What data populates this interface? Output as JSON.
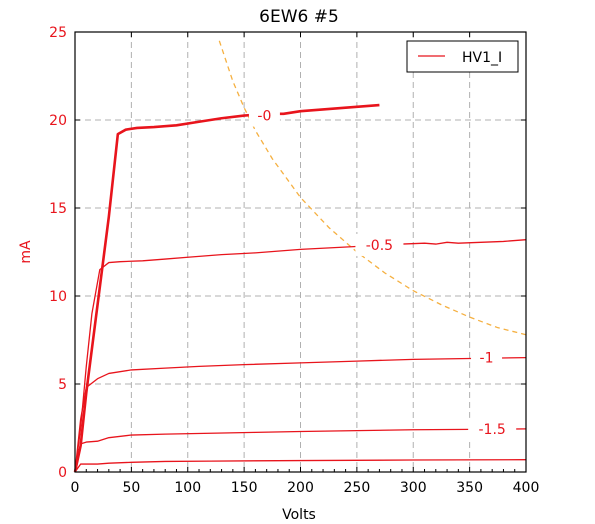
{
  "chart_data": {
    "type": "line",
    "title": "6EW6 #5",
    "xlabel": "Volts",
    "ylabel": "mA",
    "xlim": [
      0,
      400
    ],
    "ylim": [
      0,
      25
    ],
    "xticks": [
      "0",
      "50",
      "100",
      "150",
      "200",
      "250",
      "300",
      "350",
      "400"
    ],
    "yticks": [
      "0",
      "5",
      "10",
      "15",
      "20",
      "25"
    ],
    "grid": true,
    "legend": {
      "position": "top-right",
      "entries": [
        "HV1_I"
      ]
    },
    "colors": {
      "curve": "#e8141c",
      "axis_label": "#e8141c",
      "load_line": "#f5b041",
      "grid": "#b0b0b0"
    },
    "series": [
      {
        "label": "-0",
        "bold": true,
        "x": [
          0,
          5,
          10,
          20,
          30,
          38,
          45,
          55,
          70,
          90,
          110,
          130,
          150,
          170,
          185,
          200,
          220,
          250,
          270
        ],
        "y": [
          0,
          1.5,
          4.5,
          9.5,
          14.5,
          19.2,
          19.45,
          19.55,
          19.6,
          19.7,
          19.9,
          20.1,
          20.25,
          20.35,
          20.35,
          20.5,
          20.6,
          20.75,
          20.85
        ],
        "label_x": 168,
        "label_y": 20.25
      },
      {
        "label": "-0.5",
        "x": [
          0,
          5,
          10,
          15,
          22,
          30,
          40,
          60,
          80,
          100,
          130,
          160,
          190,
          200,
          230,
          260,
          290,
          310,
          320,
          330,
          340,
          360,
          380,
          400
        ],
        "y": [
          0,
          2.5,
          6,
          9,
          11.5,
          11.9,
          11.95,
          12,
          12.1,
          12.2,
          12.35,
          12.45,
          12.6,
          12.65,
          12.75,
          12.85,
          12.95,
          13,
          12.95,
          13.05,
          13,
          13.05,
          13.1,
          13.2
        ],
        "label_x": 270,
        "label_y": 12.9
      },
      {
        "label": "-1",
        "x": [
          0,
          5,
          10,
          20,
          30,
          50,
          80,
          110,
          150,
          200,
          250,
          300,
          350,
          400
        ],
        "y": [
          0,
          3,
          4.8,
          5.3,
          5.6,
          5.8,
          5.9,
          6.0,
          6.1,
          6.2,
          6.3,
          6.4,
          6.45,
          6.5
        ],
        "label_x": 365,
        "label_y": 6.5
      },
      {
        "label": "-1.5",
        "x": [
          0,
          5,
          10,
          20,
          30,
          50,
          80,
          120,
          160,
          200,
          250,
          300,
          350,
          400
        ],
        "y": [
          0,
          1.6,
          1.7,
          1.75,
          1.95,
          2.1,
          2.15,
          2.2,
          2.25,
          2.3,
          2.35,
          2.4,
          2.42,
          2.45
        ],
        "label_x": 370,
        "label_y": 2.45
      },
      {
        "label": "",
        "x": [
          0,
          5,
          10,
          20,
          30,
          50,
          80,
          120,
          200,
          300,
          400
        ],
        "y": [
          0,
          0.45,
          0.45,
          0.45,
          0.5,
          0.55,
          0.6,
          0.62,
          0.65,
          0.68,
          0.7
        ],
        "label_x": null,
        "label_y": null
      }
    ],
    "load_line": {
      "x": [
        128,
        140,
        150,
        160,
        175,
        200,
        225,
        250,
        275,
        300,
        325,
        350,
        375,
        400
      ],
      "y": [
        24.5,
        22.2,
        20.7,
        19.4,
        17.8,
        15.6,
        13.9,
        12.5,
        11.3,
        10.3,
        9.5,
        8.8,
        8.2,
        7.8
      ]
    }
  }
}
